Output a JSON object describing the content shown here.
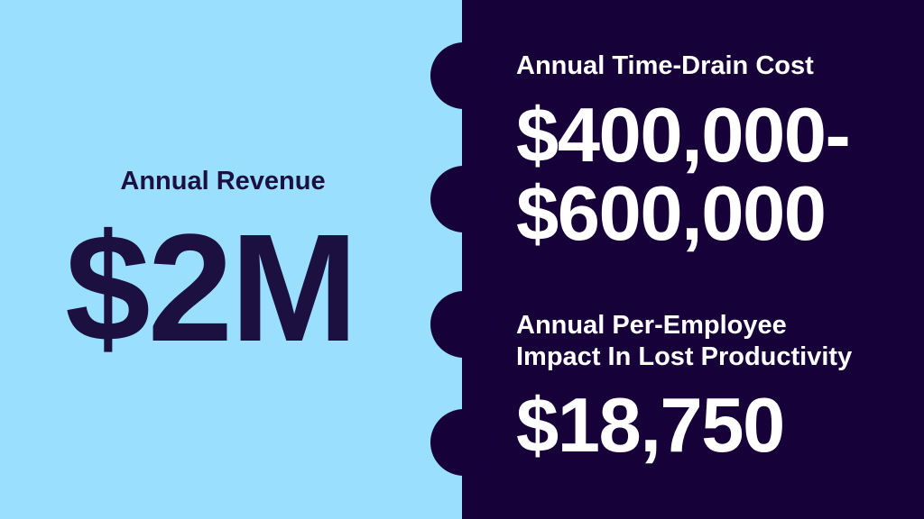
{
  "colors": {
    "light_bg": "#9ADFFD",
    "dark_bg": "#170139",
    "dark_text": "#1C1040",
    "light_text": "#FFFFFF"
  },
  "left_panel": {
    "label": "Annual Revenue",
    "value": "$2M"
  },
  "right_panel": {
    "stat1": {
      "label": "Annual Time-Drain Cost",
      "value_line1": "$400,000-",
      "value_line2": "$600,000"
    },
    "stat2": {
      "label_line1": "Annual Per-Employee",
      "label_line2": "Impact In Lost Productivity",
      "value": "$18,750"
    }
  }
}
